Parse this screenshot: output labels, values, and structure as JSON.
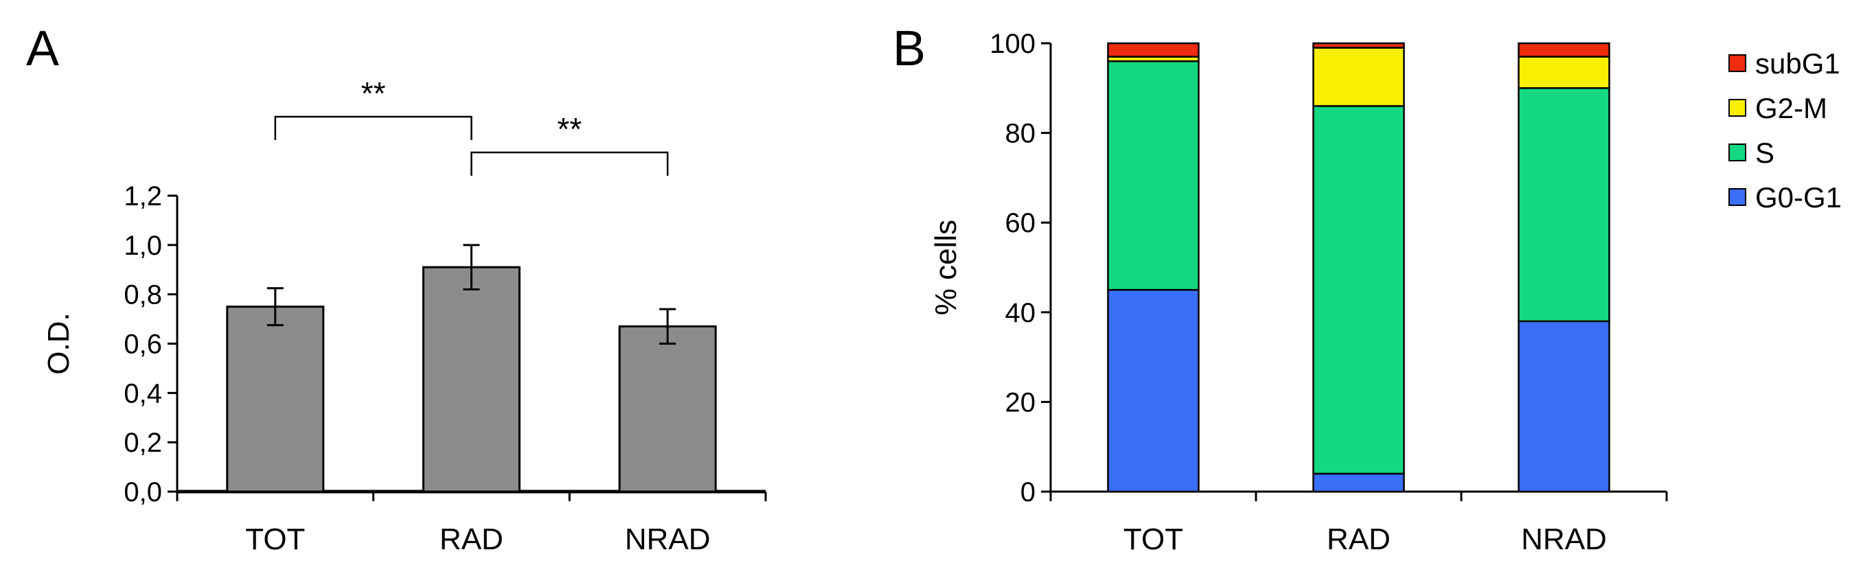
{
  "chart_data": [
    {
      "panel": "A",
      "type": "bar",
      "categories": [
        "TOT",
        "RAD",
        "NRAD"
      ],
      "values": [
        0.75,
        0.91,
        0.67
      ],
      "errors": [
        0.075,
        0.09,
        0.07
      ],
      "ylabel": "O.D.",
      "xlabel": "",
      "ylim": [
        0,
        1.2
      ],
      "yticks": [
        "0,0",
        "0,2",
        "0,4",
        "0,6",
        "0,8",
        "1,0",
        "1,2"
      ],
      "bar_color": "#8c8c8c",
      "grid": false,
      "significance": [
        {
          "from": "TOT",
          "to": "RAD",
          "label": "**"
        },
        {
          "from": "RAD",
          "to": "NRAD",
          "label": "**"
        }
      ]
    },
    {
      "panel": "B",
      "type": "bar",
      "stacked": true,
      "categories": [
        "TOT",
        "RAD",
        "NRAD"
      ],
      "series": [
        {
          "name": "G0-G1",
          "color": "#3a6ff7",
          "values": [
            45,
            4,
            38
          ]
        },
        {
          "name": "S",
          "color": "#14d982",
          "values": [
            51,
            82,
            52
          ]
        },
        {
          "name": "G2-M",
          "color": "#f8f000",
          "values": [
            1,
            13,
            7
          ]
        },
        {
          "name": "subG1",
          "color": "#ee2b0e",
          "values": [
            3,
            1,
            3
          ]
        }
      ],
      "ylabel": "% cells",
      "xlabel": "",
      "ylim": [
        0,
        100
      ],
      "yticks": [
        "0",
        "20",
        "40",
        "60",
        "80",
        "100"
      ],
      "legend_position": "right",
      "grid": false
    }
  ]
}
